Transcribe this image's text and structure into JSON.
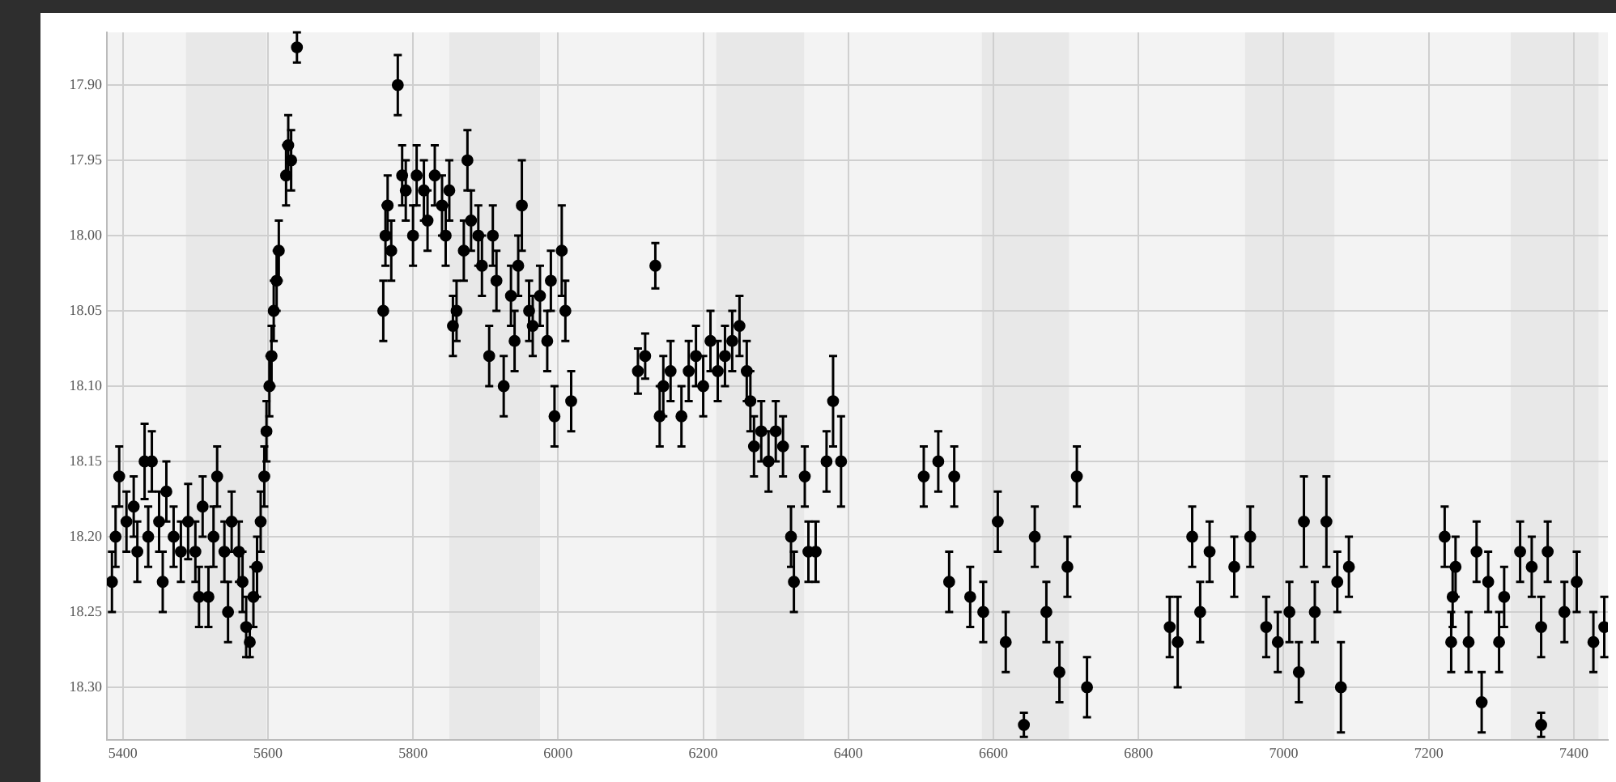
{
  "chart_data": {
    "type": "scatter",
    "x": [
      5385,
      5390,
      5395,
      5405,
      5415,
      5420,
      5430,
      5435,
      5440,
      5450,
      5455,
      5460,
      5470,
      5480,
      5490,
      5500,
      5505,
      5510,
      5518,
      5525,
      5530,
      5540,
      5545,
      5550,
      5560,
      5565,
      5570,
      5575,
      5580,
      5585,
      5590,
      5595,
      5598,
      5602,
      5605,
      5608,
      5612,
      5615,
      5625,
      5628,
      5632,
      5640,
      5759,
      5762,
      5765,
      5770,
      5779,
      5785,
      5790,
      5800,
      5805,
      5815,
      5820,
      5830,
      5840,
      5845,
      5850,
      5855,
      5860,
      5870,
      5875,
      5880,
      5890,
      5895,
      5905,
      5910,
      5915,
      5925,
      5935,
      5940,
      5945,
      5950,
      5960,
      5965,
      5975,
      5985,
      5990,
      5995,
      6005,
      6010,
      6018,
      6110,
      6120,
      6134,
      6140,
      6145,
      6155,
      6170,
      6180,
      6190,
      6200,
      6210,
      6220,
      6230,
      6240,
      6250,
      6260,
      6265,
      6270,
      6280,
      6290,
      6300,
      6310,
      6321,
      6325,
      6340,
      6345,
      6355,
      6370,
      6379,
      6390,
      6504,
      6524,
      6539,
      6546,
      6568,
      6586,
      6606,
      6617,
      6642,
      6657,
      6673,
      6691,
      6702,
      6715,
      6729,
      6843,
      6854,
      6874,
      6885,
      6898,
      6932,
      6954,
      6976,
      6992,
      7008,
      7021,
      7028,
      7043,
      7059,
      7074,
      7079,
      7090,
      7222,
      7231,
      7233,
      7237,
      7255,
      7266,
      7273,
      7282,
      7297,
      7304,
      7326,
      7342,
      7355,
      7355,
      7364,
      7387,
      7404,
      7427,
      7442
    ],
    "values": [
      18.23,
      18.2,
      18.16,
      18.19,
      18.18,
      18.21,
      18.15,
      18.2,
      18.15,
      18.19,
      18.23,
      18.17,
      18.2,
      18.21,
      18.19,
      18.21,
      18.24,
      18.18,
      18.24,
      18.2,
      18.16,
      18.21,
      18.25,
      18.19,
      18.21,
      18.23,
      18.26,
      18.27,
      18.24,
      18.22,
      18.19,
      18.16,
      18.13,
      18.1,
      18.08,
      18.05,
      18.03,
      18.01,
      17.96,
      17.94,
      17.95,
      17.875,
      18.05,
      18,
      17.98,
      18.01,
      17.9,
      17.96,
      17.97,
      18,
      17.96,
      17.97,
      17.99,
      17.96,
      17.98,
      18,
      17.97,
      18.06,
      18.05,
      18.01,
      17.95,
      17.99,
      18,
      18.02,
      18.08,
      18,
      18.03,
      18.1,
      18.04,
      18.07,
      18.02,
      17.98,
      18.05,
      18.06,
      18.04,
      18.07,
      18.03,
      18.12,
      18.01,
      18.05,
      18.11,
      18.09,
      18.08,
      18.02,
      18.12,
      18.1,
      18.09,
      18.12,
      18.09,
      18.08,
      18.1,
      18.07,
      18.09,
      18.08,
      18.07,
      18.06,
      18.09,
      18.11,
      18.14,
      18.13,
      18.15,
      18.13,
      18.14,
      18.2,
      18.23,
      18.16,
      18.21,
      18.21,
      18.15,
      18.11,
      18.15,
      18.16,
      18.15,
      18.23,
      18.16,
      18.24,
      18.25,
      18.19,
      18.27,
      18.325,
      18.2,
      18.25,
      18.29,
      18.22,
      18.16,
      18.3,
      18.26,
      18.27,
      18.2,
      18.25,
      18.21,
      18.22,
      18.2,
      18.26,
      18.27,
      18.25,
      18.29,
      18.19,
      18.25,
      18.19,
      18.23,
      18.3,
      18.22,
      18.2,
      18.27,
      18.24,
      18.22,
      18.27,
      18.21,
      18.31,
      18.23,
      18.27,
      18.24,
      18.21,
      18.22,
      18.26,
      18.325,
      18.21,
      18.25,
      18.23,
      18.27,
      18.26
    ],
    "errors": [
      0.02,
      0.02,
      0.02,
      0.02,
      0.02,
      0.02,
      0.025,
      0.02,
      0.02,
      0.02,
      0.02,
      0.02,
      0.02,
      0.02,
      0.025,
      0.02,
      0.02,
      0.02,
      0.02,
      0.02,
      0.02,
      0.02,
      0.02,
      0.02,
      0.02,
      0.02,
      0.02,
      0.01,
      0.02,
      0.02,
      0.02,
      0.02,
      0.02,
      0.02,
      0.02,
      0.02,
      0.02,
      0.02,
      0.02,
      0.02,
      0.02,
      0.01,
      0.02,
      0.02,
      0.02,
      0.02,
      0.02,
      0.02,
      0.02,
      0.02,
      0.02,
      0.02,
      0.02,
      0.02,
      0.02,
      0.02,
      0.02,
      0.02,
      0.02,
      0.02,
      0.02,
      0.02,
      0.02,
      0.02,
      0.02,
      0.02,
      0.02,
      0.02,
      0.02,
      0.02,
      0.02,
      0.03,
      0.02,
      0.02,
      0.02,
      0.02,
      0.02,
      0.02,
      0.03,
      0.02,
      0.02,
      0.015,
      0.015,
      0.015,
      0.02,
      0.02,
      0.02,
      0.02,
      0.02,
      0.02,
      0.02,
      0.02,
      0.02,
      0.02,
      0.02,
      0.02,
      0.02,
      0.02,
      0.02,
      0.02,
      0.02,
      0.02,
      0.02,
      0.02,
      0.02,
      0.02,
      0.02,
      0.02,
      0.02,
      0.03,
      0.03,
      0.02,
      0.02,
      0.02,
      0.02,
      0.02,
      0.02,
      0.02,
      0.02,
      0.008,
      0.02,
      0.02,
      0.02,
      0.02,
      0.02,
      0.02,
      0.02,
      0.03,
      0.02,
      0.02,
      0.02,
      0.02,
      0.02,
      0.02,
      0.02,
      0.02,
      0.02,
      0.03,
      0.02,
      0.03,
      0.02,
      0.03,
      0.02,
      0.02,
      0.02,
      0.02,
      0.02,
      0.02,
      0.02,
      0.02,
      0.02,
      0.02,
      0.02,
      0.02,
      0.02,
      0.02,
      0.008,
      0.02,
      0.02,
      0.02,
      0.02,
      0.02
    ],
    "color": "#000000",
    "marker": "circle",
    "xlim": [
      5378,
      7447
    ],
    "ylim": [
      18.335,
      17.865
    ],
    "xticks": [
      5400,
      5600,
      5800,
      6000,
      6200,
      6400,
      6600,
      6800,
      7000,
      7200,
      7400
    ],
    "yticks": [
      {
        "value": 17.9,
        "label": "17.90"
      },
      {
        "value": 17.95,
        "label": "17.95"
      },
      {
        "value": 18,
        "label": "18.00"
      },
      {
        "value": 18.05,
        "label": "18.05"
      },
      {
        "value": 18.1,
        "label": "18.10"
      },
      {
        "value": 18.15,
        "label": "18.15"
      },
      {
        "value": 18.2,
        "label": "18.20"
      },
      {
        "value": 18.25,
        "label": "18.25"
      },
      {
        "value": 18.3,
        "label": "18.30"
      }
    ],
    "grid": true,
    "bands": [
      {
        "axis": "x",
        "from": 5487,
        "to": 5598,
        "color": "#e8e8e8"
      },
      {
        "axis": "x",
        "from": 5850,
        "to": 5975,
        "color": "#e8e8e8"
      },
      {
        "axis": "x",
        "from": 6218,
        "to": 6339,
        "color": "#e8e8e8"
      },
      {
        "axis": "x",
        "from": 6584,
        "to": 6704,
        "color": "#e8e8e8"
      },
      {
        "axis": "x",
        "from": 6947,
        "to": 7070,
        "color": "#e8e8e8"
      },
      {
        "axis": "x",
        "from": 7313,
        "to": 7434,
        "color": "#e8e8e8"
      }
    ]
  }
}
